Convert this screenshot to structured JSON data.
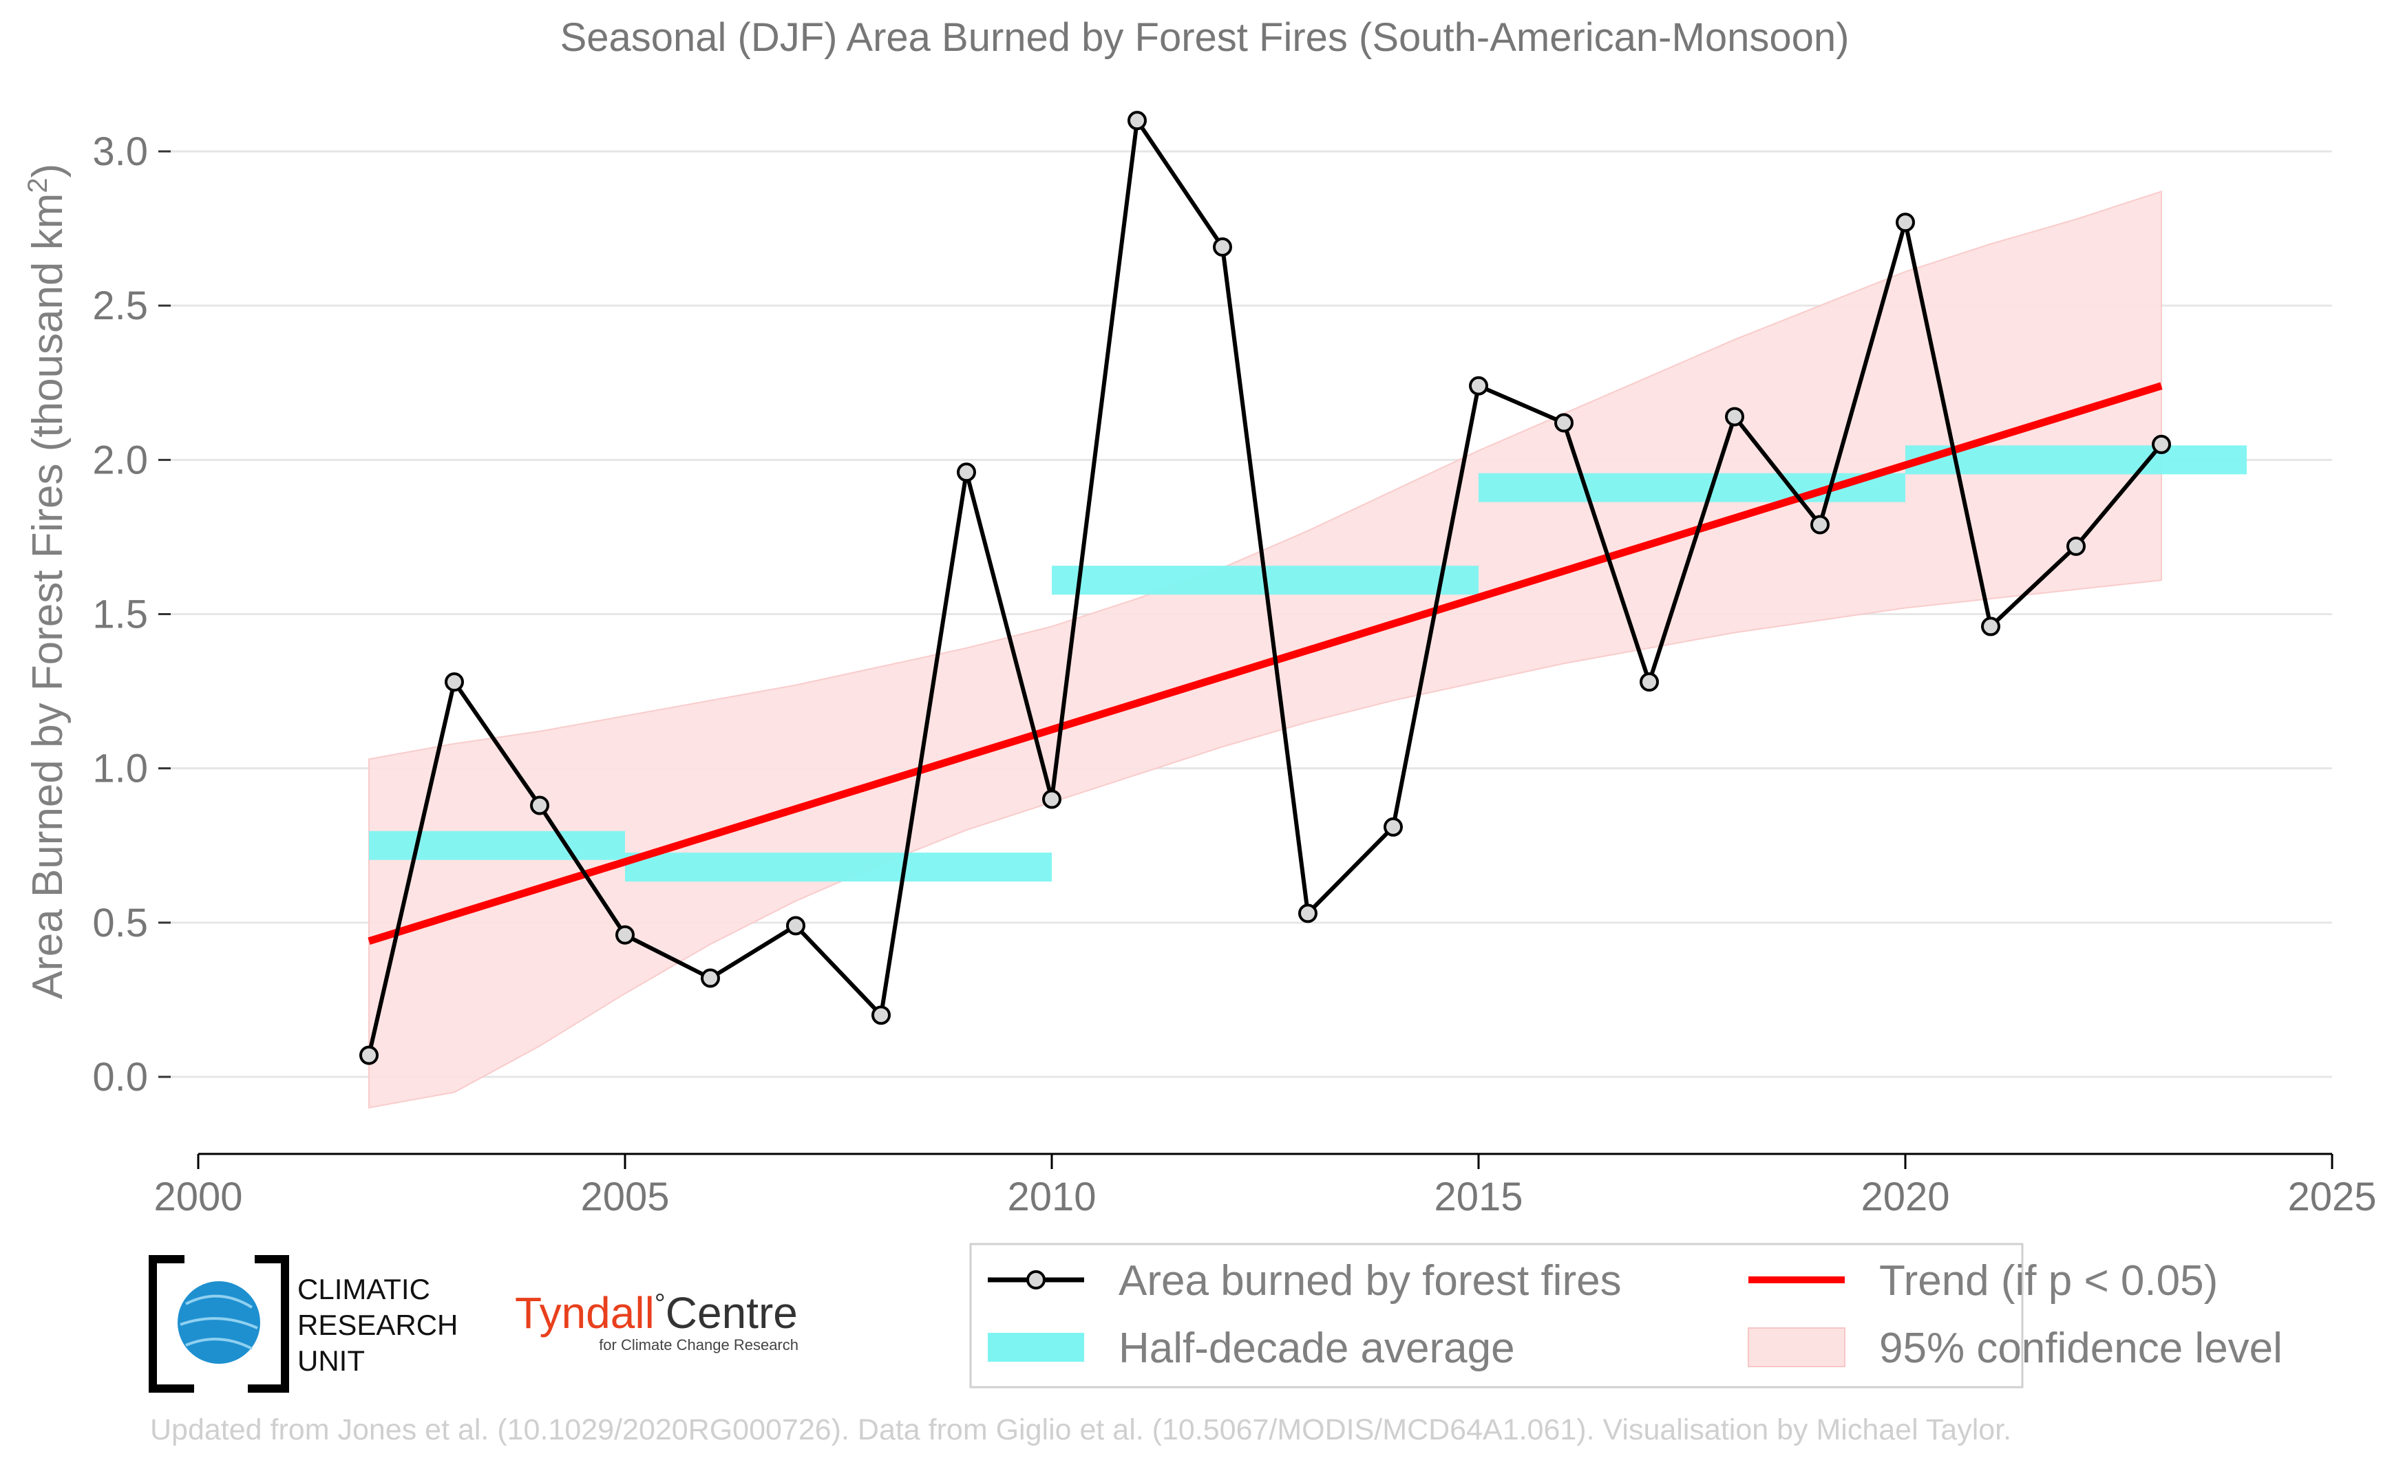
{
  "chart_data": {
    "type": "line",
    "title": "Seasonal (DJF) Area Burned by Forest Fires (South-American-Monsoon)",
    "ylabel": "Area Burned by Forest Fires (thousand km",
    "ylabel_sup": "2",
    "ylabel_close": ")",
    "xlim": [
      2000,
      2025
    ],
    "ylim": [
      -0.1,
      3.2
    ],
    "yticks": [
      0.0,
      0.5,
      1.0,
      1.5,
      2.0,
      2.5,
      3.0
    ],
    "ytick_labels": [
      "0.0",
      "0.5",
      "1.0",
      "1.5",
      "2.0",
      "2.5",
      "3.0"
    ],
    "xticks": [
      2000,
      2005,
      2010,
      2015,
      2020,
      2025
    ],
    "xtick_labels": [
      "2000",
      "2005",
      "2010",
      "2015",
      "2020",
      "2025"
    ],
    "grid": "horizontal",
    "series": [
      {
        "name": "Area burned by forest fires",
        "color": "#000000",
        "x": [
          2002,
          2003,
          2004,
          2005,
          2006,
          2007,
          2008,
          2009,
          2010,
          2011,
          2012,
          2013,
          2014,
          2015,
          2016,
          2017,
          2018,
          2019,
          2020,
          2021,
          2022,
          2023
        ],
        "y": [
          0.07,
          1.28,
          0.88,
          0.46,
          0.32,
          0.49,
          0.2,
          1.96,
          0.9,
          3.1,
          2.69,
          0.53,
          0.81,
          2.24,
          2.12,
          1.28,
          2.14,
          1.79,
          2.77,
          1.46,
          1.72,
          2.05
        ]
      }
    ],
    "half_decade_average": {
      "name": "Half-decade average",
      "color": "#7df4f1",
      "segments": [
        {
          "x_start": 2002,
          "x_end": 2005,
          "value": 0.75
        },
        {
          "x_start": 2005,
          "x_end": 2010,
          "value": 0.68
        },
        {
          "x_start": 2010,
          "x_end": 2015,
          "value": 1.61
        },
        {
          "x_start": 2015,
          "x_end": 2020,
          "value": 1.91
        },
        {
          "x_start": 2020,
          "x_end": 2024,
          "value": 2.0
        }
      ]
    },
    "trend": {
      "name": "Trend (if p < 0.05)",
      "color": "#ff0000",
      "x": [
        2002,
        2023
      ],
      "y": [
        0.44,
        2.24
      ]
    },
    "confidence_band": {
      "name": "95% confidence level",
      "color": "#fde2e2",
      "x": [
        2002,
        2003,
        2004,
        2005,
        2006,
        2007,
        2008,
        2009,
        2010,
        2011,
        2012,
        2013,
        2014,
        2015,
        2016,
        2017,
        2018,
        2019,
        2020,
        2021,
        2022,
        2023
      ],
      "upper": [
        1.03,
        1.08,
        1.12,
        1.17,
        1.22,
        1.27,
        1.33,
        1.39,
        1.46,
        1.55,
        1.65,
        1.77,
        1.9,
        2.03,
        2.15,
        2.27,
        2.39,
        2.5,
        2.61,
        2.7,
        2.78,
        2.87
      ],
      "lower": [
        -0.12,
        -0.05,
        0.1,
        0.27,
        0.43,
        0.57,
        0.69,
        0.8,
        0.89,
        0.98,
        1.07,
        1.15,
        1.22,
        1.28,
        1.34,
        1.39,
        1.44,
        1.48,
        1.52,
        1.55,
        1.58,
        1.61
      ]
    },
    "legend": {
      "placement": "bottom-right",
      "entries": [
        "Area burned by forest fires",
        "Trend (if p < 0.05)",
        "Half-decade average",
        "95% confidence level"
      ]
    }
  },
  "logos": {
    "cru": {
      "line1": "CLIMATIC",
      "line2": "RESEARCH",
      "line3": "UNIT"
    },
    "tyndall": {
      "part1": "Tyndall",
      "degree": "°",
      "part2": "Centre",
      "sub": "for Climate Change Research",
      "color_part1": "#e8401c",
      "color_part2": "#333333"
    }
  },
  "footnote": "Updated from Jones et al. (10.1029/2020RG000726). Data from Giglio et al. (10.5067/MODIS/MCD64A1.061). Visualisation by Michael Taylor."
}
